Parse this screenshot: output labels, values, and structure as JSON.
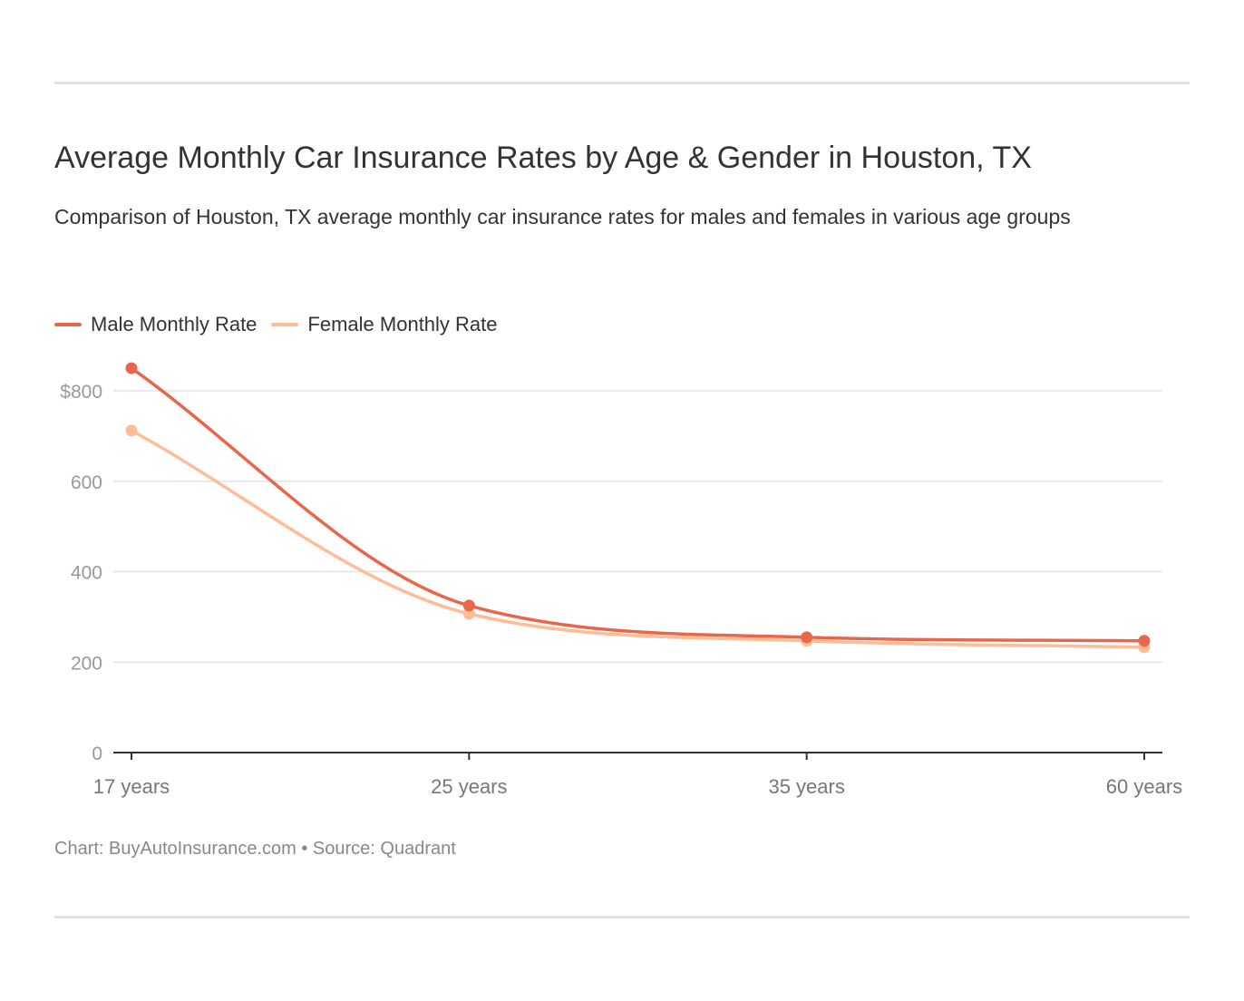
{
  "chart_data": {
    "type": "line",
    "title": "Average Monthly Car Insurance Rates by Age & Gender in Houston, TX",
    "subtitle": "Comparison of Houston, TX average monthly car insurance rates for males and females in various age groups",
    "categories": [
      "17 years",
      "25 years",
      "35 years",
      "60 years"
    ],
    "series": [
      {
        "name": "Male Monthly Rate",
        "color": "#e8674a",
        "values": [
          850,
          325,
          255,
          247
        ]
      },
      {
        "name": "Female Monthly Rate",
        "color": "#ffbc96",
        "values": [
          712,
          307,
          247,
          233
        ]
      }
    ],
    "ylim": [
      0,
      800
    ],
    "yticks": [
      0,
      200,
      400,
      600,
      800
    ],
    "ytick_labels": [
      "0",
      "200",
      "400",
      "600",
      "$800"
    ],
    "grid": true,
    "legend": "top-left",
    "footer": "Chart: BuyAutoInsurance.com • Source: Quadrant"
  }
}
